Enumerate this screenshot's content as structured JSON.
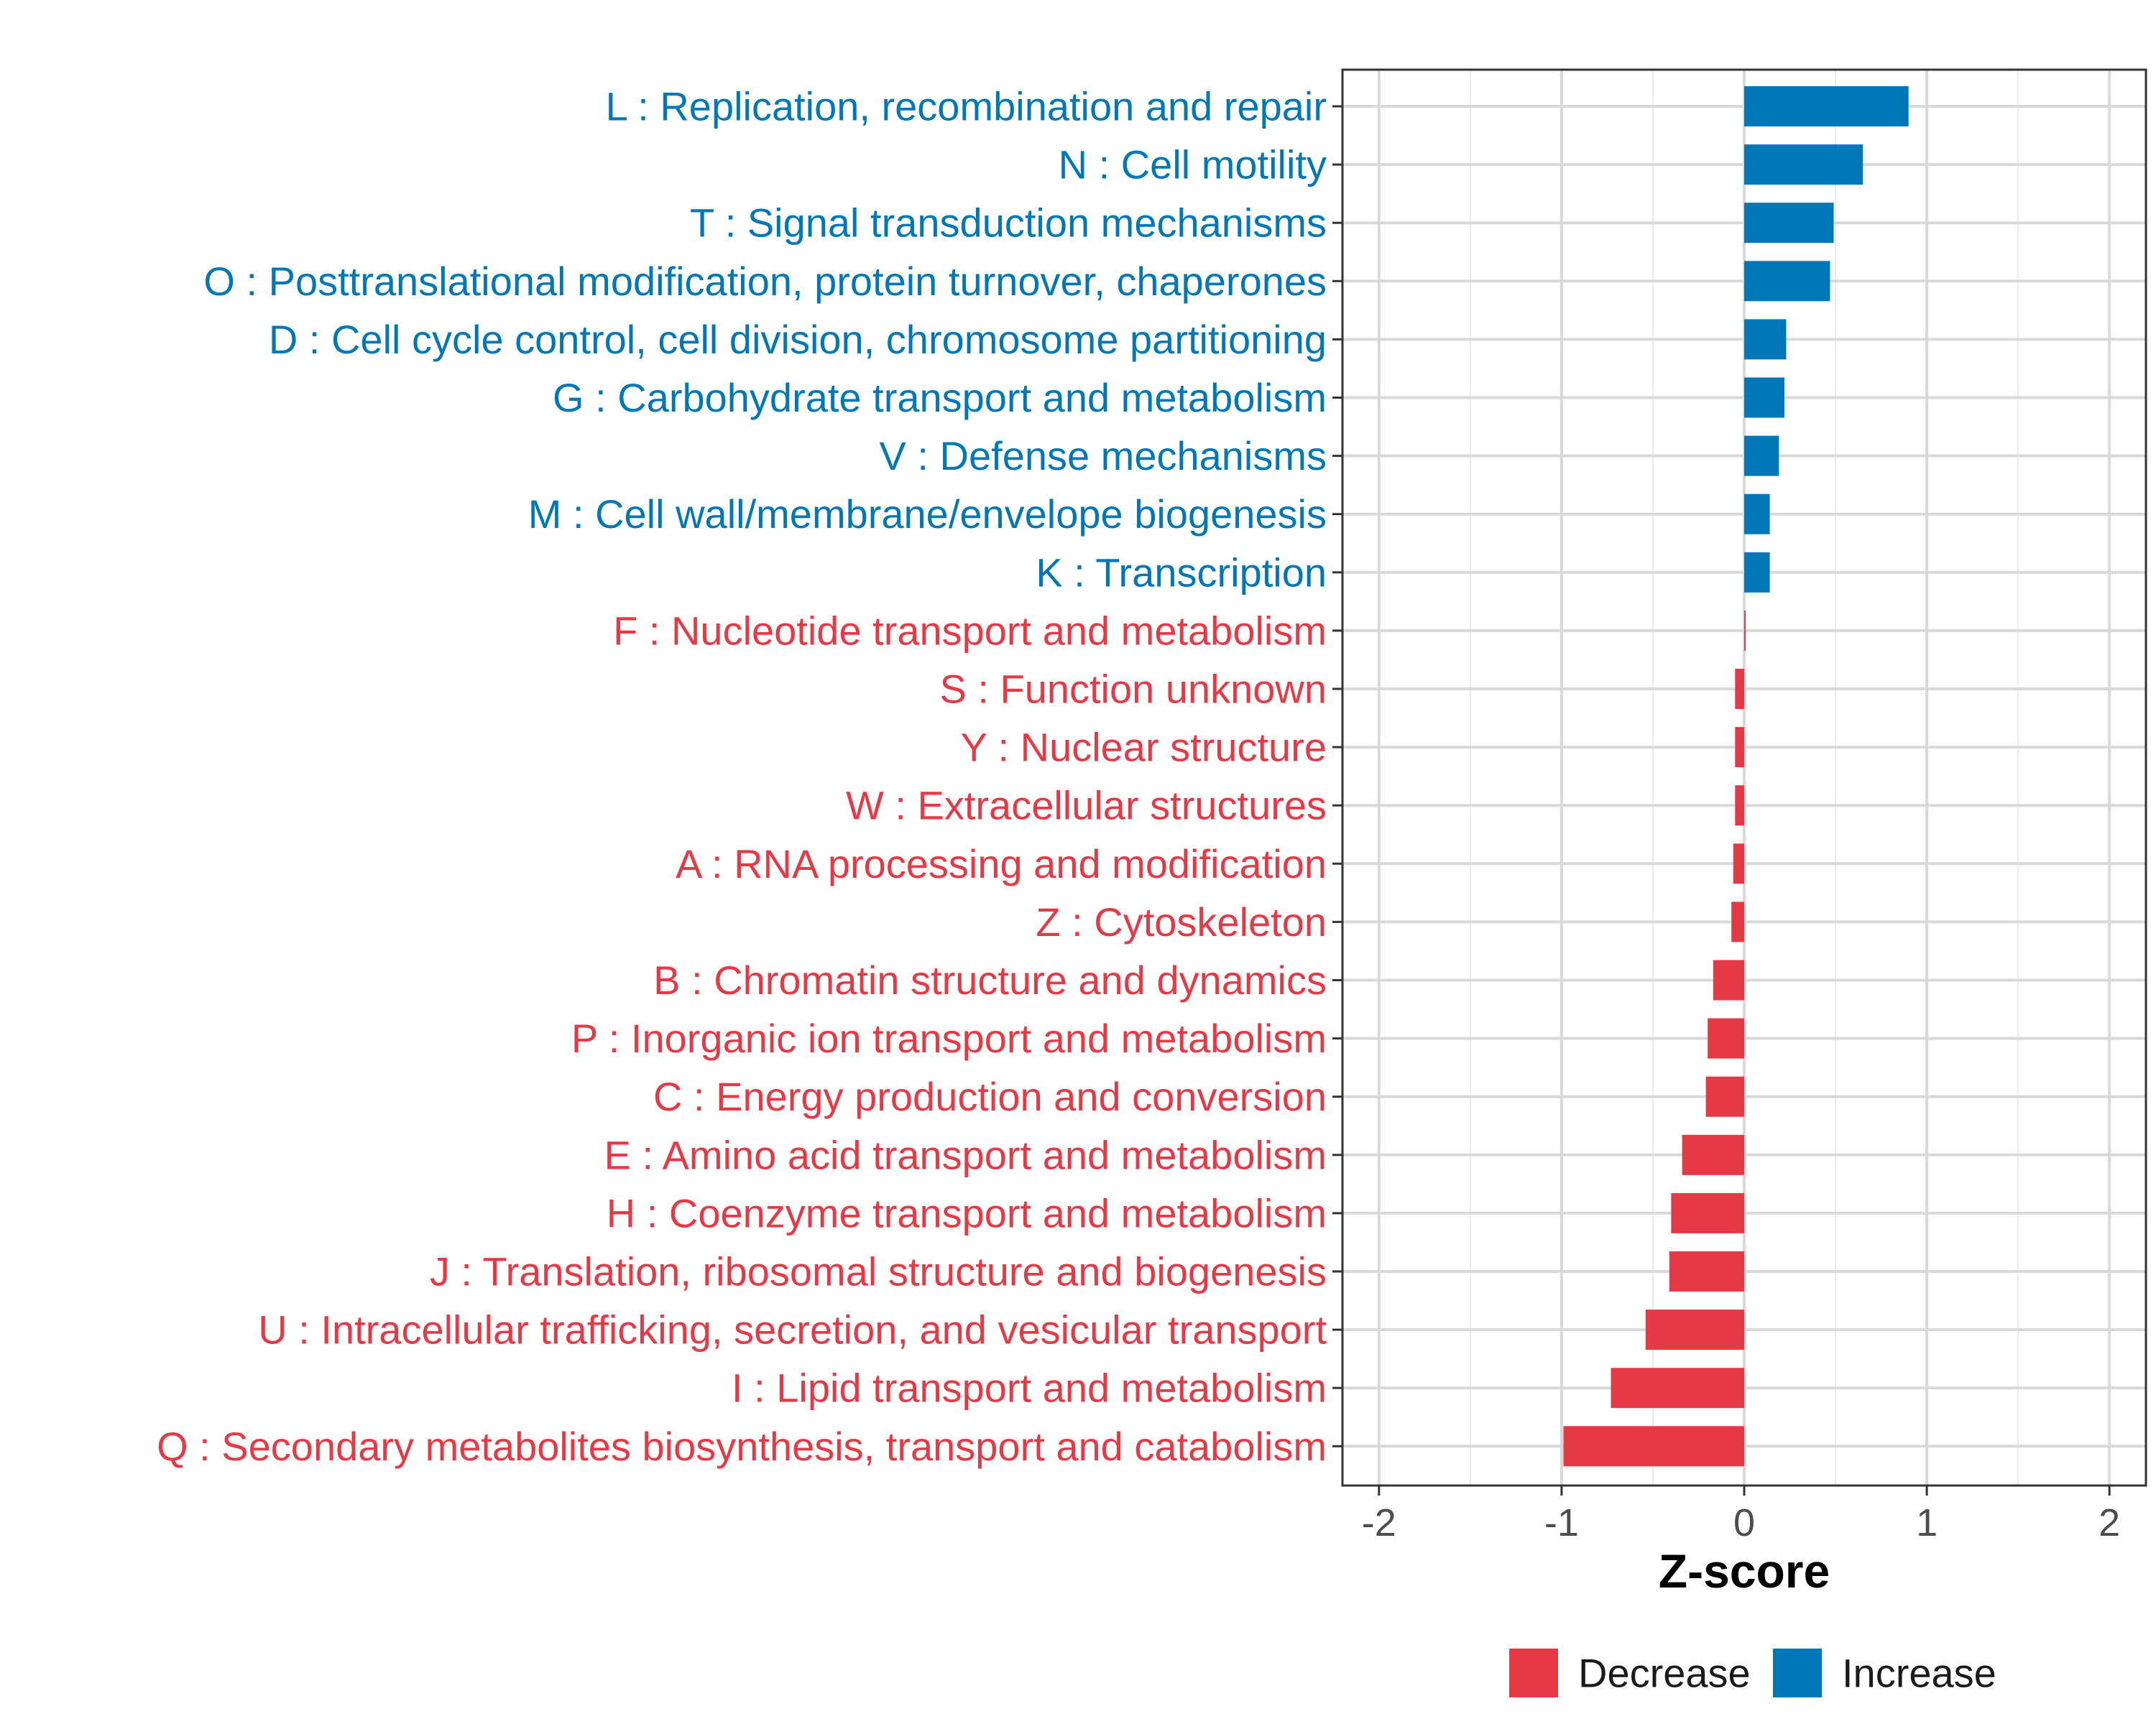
{
  "chart_data": {
    "type": "bar",
    "orientation": "horizontal",
    "title": "",
    "xlabel": "Z-score",
    "ylabel": "",
    "xlim": [
      -2.2,
      2.2
    ],
    "xticks": [
      -2,
      -1,
      0,
      1,
      2
    ],
    "xtick_labels": [
      "-2",
      "-1",
      "0",
      "1",
      "2"
    ],
    "grid": true,
    "legend_position": "bottom",
    "colors": {
      "Decrease": "#E63946",
      "Increase": "#0077B6",
      "grid": "#D9D9D9",
      "panel_border": "#333333"
    },
    "categories": [
      "L : Replication, recombination and repair",
      "N : Cell motility",
      "T : Signal transduction mechanisms",
      "O : Posttranslational modification, protein turnover, chaperones",
      "D : Cell cycle control, cell division, chromosome partitioning",
      "G : Carbohydrate transport and metabolism",
      "V : Defense mechanisms",
      "M : Cell wall/membrane/envelope biogenesis",
      "K : Transcription",
      "F : Nucleotide transport and metabolism",
      "S : Function unknown",
      "Y : Nuclear structure",
      "W : Extracellular structures",
      "A : RNA processing and modification",
      "Z : Cytoskeleton",
      "B : Chromatin structure and dynamics",
      "P : Inorganic ion transport and metabolism",
      "C : Energy production and conversion",
      "E : Amino acid transport and metabolism",
      "H : Coenzyme transport and metabolism",
      "J : Translation, ribosomal structure and biogenesis",
      "U : Intracellular trafficking, secretion, and vesicular transport",
      "I : Lipid transport and metabolism",
      "Q : Secondary metabolites biosynthesis, transport and catabolism"
    ],
    "values": [
      0.9,
      0.65,
      0.49,
      0.47,
      0.23,
      0.22,
      0.19,
      0.14,
      0.14,
      0.0,
      -0.05,
      -0.05,
      -0.05,
      -0.06,
      -0.07,
      -0.17,
      -0.2,
      -0.21,
      -0.34,
      -0.4,
      -0.41,
      -0.54,
      -0.73,
      -0.99
    ],
    "groups": [
      "Increase",
      "Increase",
      "Increase",
      "Increase",
      "Increase",
      "Increase",
      "Increase",
      "Increase",
      "Increase",
      "Decrease",
      "Decrease",
      "Decrease",
      "Decrease",
      "Decrease",
      "Decrease",
      "Decrease",
      "Decrease",
      "Decrease",
      "Decrease",
      "Decrease",
      "Decrease",
      "Decrease",
      "Decrease",
      "Decrease"
    ],
    "legend": [
      {
        "label": "Decrease",
        "color": "#E63946"
      },
      {
        "label": "Increase",
        "color": "#0077B6"
      }
    ]
  }
}
